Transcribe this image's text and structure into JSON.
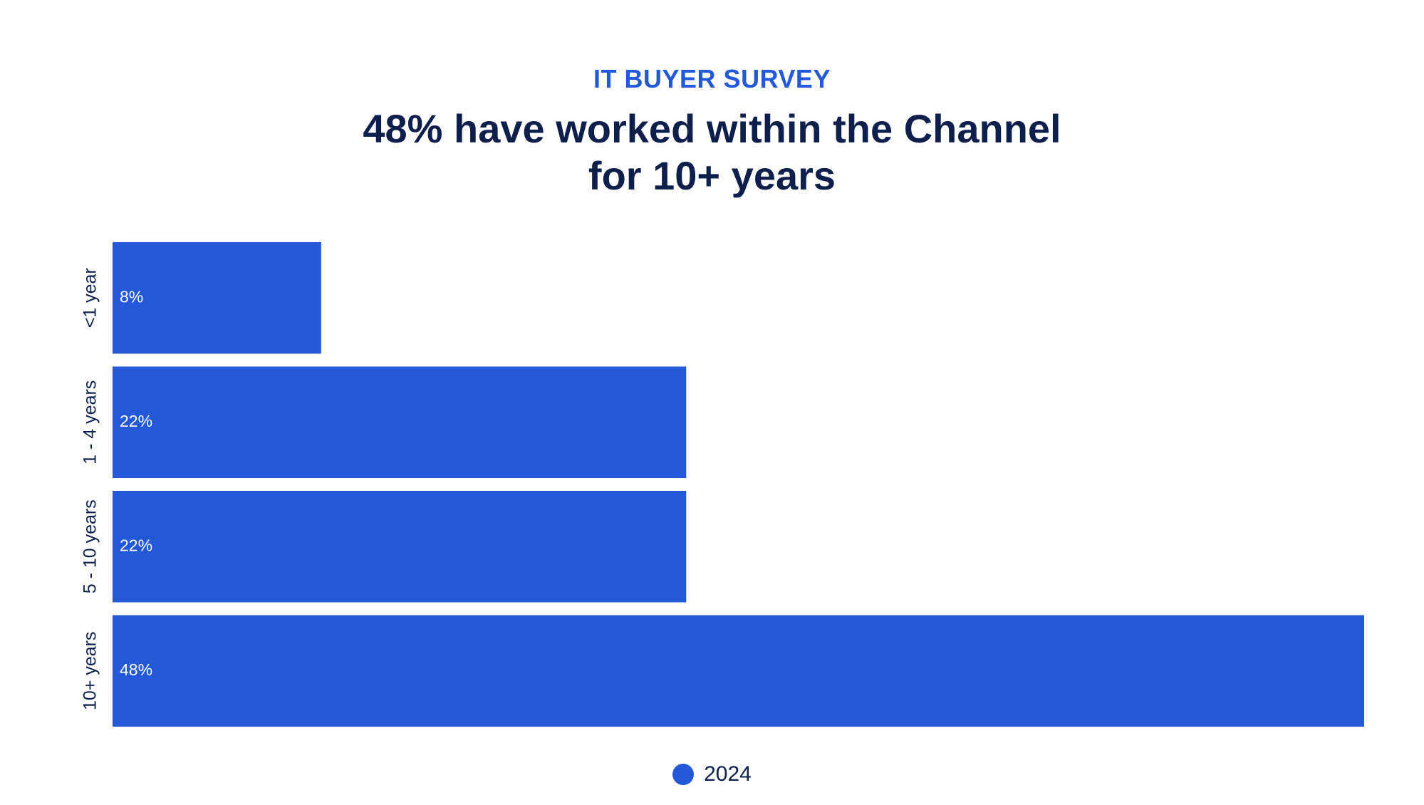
{
  "header": {
    "kicker": "IT BUYER SURVEY",
    "title_line1": "48% have worked within the Channel",
    "title_line2": "for 10+ years"
  },
  "colors": {
    "bar": "#2358d8",
    "title": "#0f1f4b",
    "kicker": "#2358d8",
    "bar_label": "#ffffff"
  },
  "chart_data": {
    "type": "bar",
    "orientation": "horizontal",
    "categories": [
      "<1 year",
      "1 - 4 years",
      "5 - 10 years",
      "10+ years"
    ],
    "series": [
      {
        "name": "2024",
        "values": [
          8,
          22,
          22,
          48
        ],
        "labels": [
          "8%",
          "22%",
          "22%",
          "48%"
        ]
      }
    ],
    "xlim": [
      0,
      48
    ],
    "grid": false,
    "legend_position": "bottom-center"
  }
}
